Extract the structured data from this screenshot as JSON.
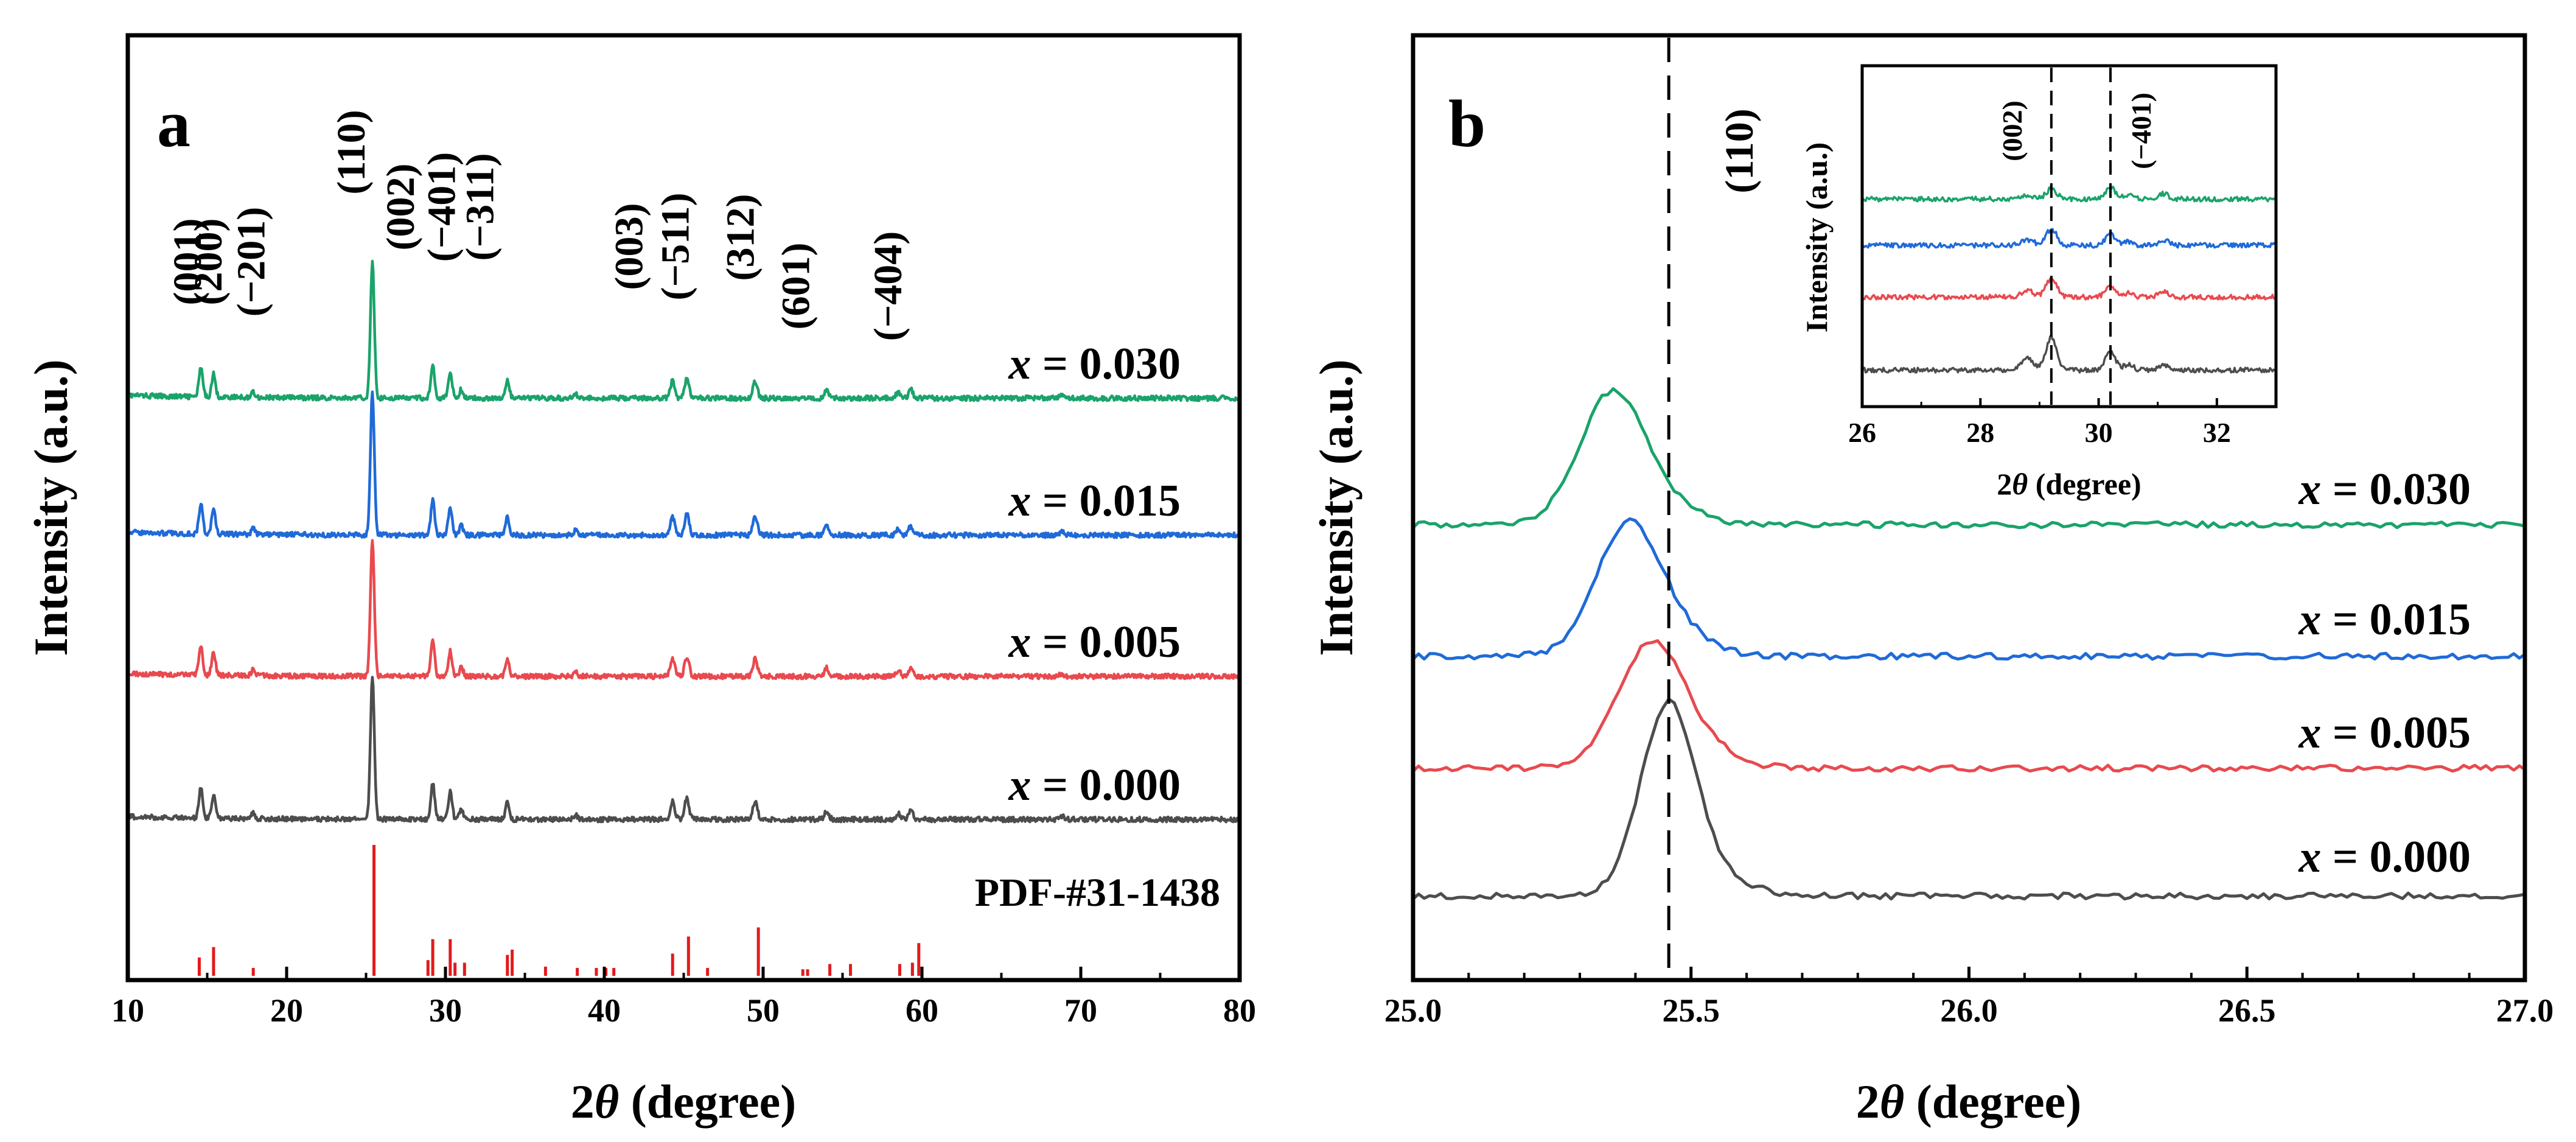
{
  "colors": {
    "x_0_000": "#4d4d4d",
    "x_0_005": "#e84a4f",
    "x_0_015": "#1f6ad8",
    "x_0_030": "#1aa36a",
    "pdf": "#e31a1c",
    "axes": "#000000"
  },
  "chart_data": [
    {
      "id": "a",
      "type": "line",
      "panel_label": "a",
      "xlabel_num": "2",
      "xlabel_sym": "θ",
      "xlabel_unit": " (degree)",
      "ylabel": "Intensity (a.u.)",
      "xlim": [
        10,
        80
      ],
      "xticks": [
        10,
        20,
        30,
        40,
        50,
        60,
        70,
        80
      ],
      "xtick_labels": [
        "10",
        "20",
        "30",
        "40",
        "50",
        "60",
        "70",
        "80"
      ],
      "series": [
        {
          "name": "x = 0.030",
          "label_x": "x",
          "label_rest": " = 0.030",
          "color_key": "x_0_030",
          "offset": 3.0,
          "base": 0.0,
          "scale": 1.0
        },
        {
          "name": "x = 0.015",
          "label_x": "x",
          "label_rest": " = 0.015",
          "color_key": "x_0_015",
          "offset": 2.0,
          "base": 0.0,
          "scale": 1.05
        },
        {
          "name": "x = 0.005",
          "label_x": "x",
          "label_rest": " = 0.005",
          "color_key": "x_0_005",
          "offset": 1.0,
          "base": 0.0,
          "scale": 1.0
        },
        {
          "name": "x = 0.000",
          "label_x": "x",
          "label_rest": " = 0.000",
          "color_key": "x_0_000",
          "offset": 0.0,
          "base": 0.0,
          "scale": 1.05
        }
      ],
      "peaks_2theta": [
        {
          "pos": 14.6,
          "h": 0.2
        },
        {
          "pos": 15.4,
          "h": 0.16
        },
        {
          "pos": 17.9,
          "h": 0.04
        },
        {
          "pos": 25.4,
          "h": 0.95
        },
        {
          "pos": 29.2,
          "h": 0.24
        },
        {
          "pos": 30.3,
          "h": 0.18
        },
        {
          "pos": 31.0,
          "h": 0.06
        },
        {
          "pos": 33.9,
          "h": 0.12
        },
        {
          "pos": 38.2,
          "h": 0.03
        },
        {
          "pos": 44.3,
          "h": 0.12
        },
        {
          "pos": 45.2,
          "h": 0.14
        },
        {
          "pos": 49.5,
          "h": 0.12
        },
        {
          "pos": 54.0,
          "h": 0.06
        },
        {
          "pos": 58.5,
          "h": 0.04
        },
        {
          "pos": 59.3,
          "h": 0.06
        },
        {
          "pos": 68.8,
          "h": 0.02
        }
      ],
      "reference": {
        "label": "PDF-#31-1438",
        "sticks": [
          {
            "pos": 14.5,
            "h": 0.14
          },
          {
            "pos": 15.4,
            "h": 0.22
          },
          {
            "pos": 17.9,
            "h": 0.06
          },
          {
            "pos": 25.5,
            "h": 1.0
          },
          {
            "pos": 28.9,
            "h": 0.12
          },
          {
            "pos": 29.2,
            "h": 0.28
          },
          {
            "pos": 30.3,
            "h": 0.28
          },
          {
            "pos": 30.6,
            "h": 0.1
          },
          {
            "pos": 31.2,
            "h": 0.1
          },
          {
            "pos": 33.9,
            "h": 0.16
          },
          {
            "pos": 34.2,
            "h": 0.2
          },
          {
            "pos": 36.3,
            "h": 0.07
          },
          {
            "pos": 38.3,
            "h": 0.06
          },
          {
            "pos": 39.5,
            "h": 0.06
          },
          {
            "pos": 40.1,
            "h": 0.06
          },
          {
            "pos": 40.6,
            "h": 0.06
          },
          {
            "pos": 44.3,
            "h": 0.17
          },
          {
            "pos": 45.3,
            "h": 0.3
          },
          {
            "pos": 46.5,
            "h": 0.06
          },
          {
            "pos": 49.7,
            "h": 0.37
          },
          {
            "pos": 52.5,
            "h": 0.05
          },
          {
            "pos": 52.8,
            "h": 0.05
          },
          {
            "pos": 54.2,
            "h": 0.09
          },
          {
            "pos": 55.5,
            "h": 0.09
          },
          {
            "pos": 58.6,
            "h": 0.09
          },
          {
            "pos": 59.4,
            "h": 0.1
          },
          {
            "pos": 59.8,
            "h": 0.25
          }
        ]
      },
      "annotations": [
        {
          "text": "(001)",
          "pos": 14.6
        },
        {
          "text": "(200)",
          "pos": 15.9
        },
        {
          "text": "(−201)",
          "pos": 18.6
        },
        {
          "text": "(110)",
          "pos": 24.9
        },
        {
          "text": "(002)",
          "pos": 28.0
        },
        {
          "text": "(−401)",
          "pos": 30.6
        },
        {
          "text": "(−311)",
          "pos": 33.0
        },
        {
          "text": "(003)",
          "pos": 42.4
        },
        {
          "text": "(−511)",
          "pos": 45.3
        },
        {
          "text": "(312)",
          "pos": 49.4
        },
        {
          "text": "(601)",
          "pos": 52.9
        },
        {
          "text": "(−404)",
          "pos": 58.7
        }
      ]
    },
    {
      "id": "b",
      "type": "line",
      "panel_label": "b",
      "xlabel_num": "2",
      "xlabel_sym": "θ",
      "xlabel_unit": " (degree)",
      "ylabel": "Intensity (a.u.)",
      "xlim": [
        25.0,
        27.0
      ],
      "xticks": [
        25.0,
        25.5,
        26.0,
        26.5,
        27.0
      ],
      "xtick_labels": [
        "25.0",
        "25.5",
        "26.0",
        "26.5",
        "27.0"
      ],
      "reference_line": 25.46,
      "reference_label": "(110)",
      "series": [
        {
          "name": "x = 0.030",
          "label_x": "x",
          "label_rest": " = 0.030",
          "color_key": "x_0_030",
          "peak_pos": 25.36,
          "peak_h": 1.0,
          "width": 0.06,
          "baseline": 3.05
        },
        {
          "name": "x = 0.015",
          "label_x": "x",
          "label_rest": " = 0.015",
          "color_key": "x_0_015",
          "peak_pos": 25.39,
          "peak_h": 1.0,
          "width": 0.06,
          "baseline": 1.98
        },
        {
          "name": "x = 0.005",
          "label_x": "x",
          "label_rest": " = 0.005",
          "color_key": "x_0_005",
          "peak_pos": 25.43,
          "peak_h": 0.95,
          "width": 0.06,
          "baseline": 1.05
        },
        {
          "name": "x = 0.000",
          "label_x": "x",
          "label_rest": " = 0.000",
          "color_key": "x_0_000",
          "peak_pos": 25.46,
          "peak_h": 1.45,
          "width": 0.05,
          "baseline": 0.0
        }
      ]
    },
    {
      "id": "b-inset",
      "type": "line",
      "xlabel_num": "2",
      "xlabel_sym": "θ",
      "xlabel_unit": " (degree)",
      "ylabel": "Intensity (a.u.)",
      "xlim": [
        26,
        33
      ],
      "xticks": [
        26,
        28,
        30,
        32
      ],
      "xtick_labels": [
        "26",
        "28",
        "30",
        "32"
      ],
      "reference_lines": [
        29.2,
        30.2
      ],
      "reference_labels": [
        "(002)",
        "(−401)"
      ],
      "series": [
        {
          "name": "x = 0.030",
          "color_key": "x_0_030",
          "baseline": 3.0,
          "h002": 0.45,
          "h401": 0.55
        },
        {
          "name": "x = 0.015",
          "color_key": "x_0_015",
          "baseline": 2.0,
          "h002": 0.75,
          "h401": 0.55
        },
        {
          "name": "x = 0.005",
          "color_key": "x_0_005",
          "baseline": 1.0,
          "h002": 0.85,
          "h401": 0.55
        },
        {
          "name": "x = 0.000",
          "color_key": "x_0_000",
          "baseline": 0.0,
          "h002": 1.5,
          "h401": 0.9
        }
      ]
    }
  ]
}
